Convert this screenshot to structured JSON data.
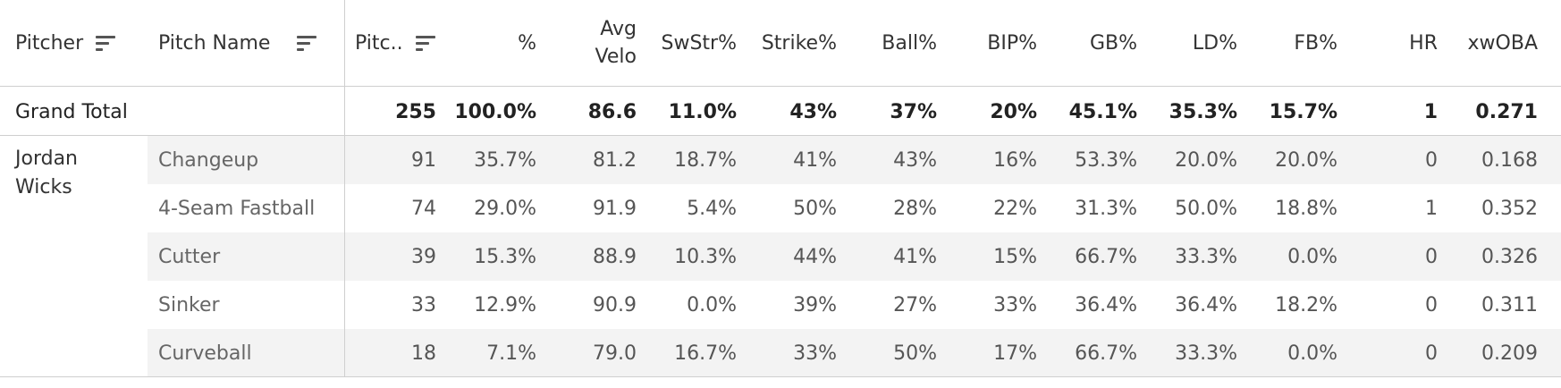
{
  "columns": [
    {
      "key": "pitcher",
      "label": "Pitcher",
      "sortable": true
    },
    {
      "key": "pitch_name",
      "label": "Pitch Name",
      "sortable": true
    },
    {
      "key": "pitches",
      "label": "Pitc..",
      "sortable": true
    },
    {
      "key": "pct",
      "label": "%"
    },
    {
      "key": "avg_velo",
      "label": "Avg\nVelo"
    },
    {
      "key": "swstr",
      "label": "SwStr%"
    },
    {
      "key": "strike",
      "label": "Strike%"
    },
    {
      "key": "ball",
      "label": "Ball%"
    },
    {
      "key": "bip",
      "label": "BIP%"
    },
    {
      "key": "gb",
      "label": "GB%"
    },
    {
      "key": "ld",
      "label": "LD%"
    },
    {
      "key": "fb",
      "label": "FB%"
    },
    {
      "key": "hr",
      "label": "HR"
    },
    {
      "key": "xwoba",
      "label": "xwOBA"
    }
  ],
  "grand_total": {
    "label": "Grand Total",
    "values": [
      "255",
      "100.0%",
      "86.6",
      "11.0%",
      "43%",
      "37%",
      "20%",
      "45.1%",
      "35.3%",
      "15.7%",
      "1",
      "0.271"
    ]
  },
  "pitcher": "Jordan\nWicks",
  "rows": [
    {
      "pitch": "Changeup",
      "values": [
        "91",
        "35.7%",
        "81.2",
        "18.7%",
        "41%",
        "43%",
        "16%",
        "53.3%",
        "20.0%",
        "20.0%",
        "0",
        "0.168"
      ]
    },
    {
      "pitch": "4-Seam Fastball",
      "values": [
        "74",
        "29.0%",
        "91.9",
        "5.4%",
        "50%",
        "28%",
        "22%",
        "31.3%",
        "50.0%",
        "18.8%",
        "1",
        "0.352"
      ]
    },
    {
      "pitch": "Cutter",
      "values": [
        "39",
        "15.3%",
        "88.9",
        "10.3%",
        "44%",
        "41%",
        "15%",
        "66.7%",
        "33.3%",
        "0.0%",
        "0",
        "0.326"
      ]
    },
    {
      "pitch": "Sinker",
      "values": [
        "33",
        "12.9%",
        "90.9",
        "0.0%",
        "39%",
        "27%",
        "33%",
        "36.4%",
        "36.4%",
        "18.2%",
        "0",
        "0.311"
      ]
    },
    {
      "pitch": "Curveball",
      "values": [
        "18",
        "7.1%",
        "79.0",
        "16.7%",
        "33%",
        "50%",
        "17%",
        "66.7%",
        "33.3%",
        "0.0%",
        "0",
        "0.209"
      ]
    }
  ]
}
